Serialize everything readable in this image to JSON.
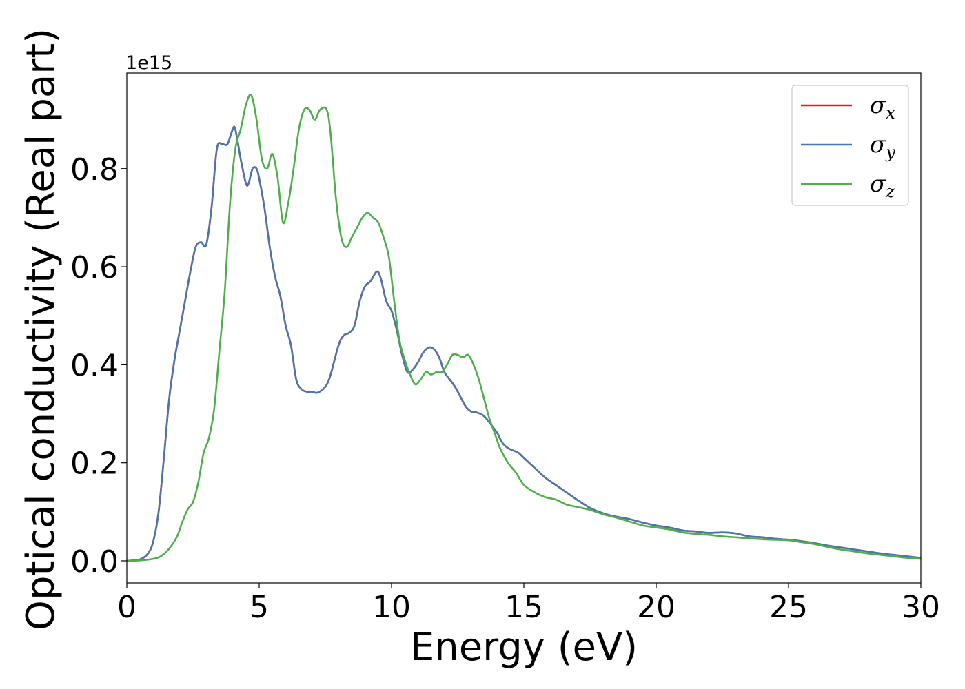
{
  "chart_data": {
    "type": "line",
    "xlabel": "Energy (eV)",
    "ylabel": "Optical conductivity (Real part)",
    "y_offset_label": "1e15",
    "xlim": [
      0,
      30
    ],
    "ylim": [
      -0.045,
      0.995
    ],
    "x_ticks": [
      0,
      5,
      10,
      15,
      20,
      25,
      30
    ],
    "x_tick_labels": [
      "0",
      "5",
      "10",
      "15",
      "20",
      "25",
      "30"
    ],
    "y_ticks": [
      0.0,
      0.2,
      0.4,
      0.6,
      0.8
    ],
    "y_tick_labels": [
      "0.0",
      "0.2",
      "0.4",
      "0.6",
      "0.8"
    ],
    "grid": false,
    "legend_position": "top-right",
    "series": [
      {
        "name": "σx",
        "symbol": "σ",
        "subscript": "x",
        "color": "#e41a1c",
        "x": [
          0,
          0.5,
          0.8,
          1.0,
          1.2,
          1.4,
          1.6,
          1.8,
          2.0,
          2.2,
          2.4,
          2.6,
          2.8,
          3.0,
          3.2,
          3.4,
          3.6,
          3.8,
          4.0,
          4.1,
          4.3,
          4.5,
          4.6,
          4.75,
          4.9,
          5.0,
          5.2,
          5.4,
          5.6,
          5.8,
          6.0,
          6.2,
          6.4,
          6.6,
          6.8,
          7.0,
          7.2,
          7.5,
          7.7,
          8.0,
          8.2,
          8.4,
          8.6,
          8.8,
          9.0,
          9.2,
          9.45,
          9.6,
          9.8,
          10.0,
          10.2,
          10.4,
          10.6,
          10.8,
          11.0,
          11.2,
          11.4,
          11.6,
          11.8,
          12.0,
          12.2,
          12.4,
          12.6,
          12.8,
          13.0,
          13.2,
          13.5,
          13.8,
          14.0,
          14.2,
          14.4,
          14.6,
          14.8,
          15.0,
          15.4,
          15.8,
          16.2,
          16.6,
          17.0,
          17.5,
          18.0,
          18.5,
          19.0,
          19.5,
          20.0,
          20.5,
          21.0,
          21.5,
          22.0,
          22.5,
          23.0,
          23.5,
          24.0,
          24.5,
          25.0,
          25.5,
          26.0,
          26.5,
          27.0,
          27.5,
          28.0,
          28.5,
          29.0,
          29.5,
          30.0
        ],
        "values": [
          0.0,
          0.003,
          0.015,
          0.04,
          0.1,
          0.21,
          0.33,
          0.41,
          0.47,
          0.53,
          0.59,
          0.64,
          0.65,
          0.645,
          0.72,
          0.84,
          0.85,
          0.85,
          0.88,
          0.88,
          0.82,
          0.77,
          0.77,
          0.8,
          0.8,
          0.78,
          0.72,
          0.64,
          0.58,
          0.54,
          0.48,
          0.44,
          0.37,
          0.35,
          0.345,
          0.345,
          0.343,
          0.355,
          0.38,
          0.44,
          0.46,
          0.465,
          0.48,
          0.53,
          0.56,
          0.57,
          0.59,
          0.575,
          0.53,
          0.51,
          0.47,
          0.42,
          0.385,
          0.39,
          0.405,
          0.425,
          0.435,
          0.432,
          0.415,
          0.385,
          0.37,
          0.355,
          0.335,
          0.315,
          0.305,
          0.303,
          0.295,
          0.275,
          0.26,
          0.24,
          0.23,
          0.225,
          0.22,
          0.21,
          0.19,
          0.17,
          0.155,
          0.14,
          0.125,
          0.108,
          0.097,
          0.09,
          0.085,
          0.078,
          0.072,
          0.068,
          0.062,
          0.06,
          0.057,
          0.058,
          0.056,
          0.05,
          0.048,
          0.045,
          0.043,
          0.04,
          0.036,
          0.031,
          0.027,
          0.023,
          0.019,
          0.015,
          0.012,
          0.009,
          0.006
        ]
      },
      {
        "name": "σy",
        "symbol": "σ",
        "subscript": "y",
        "color": "#4a76ad",
        "x": [
          0,
          0.5,
          0.8,
          1.0,
          1.2,
          1.4,
          1.6,
          1.8,
          2.0,
          2.2,
          2.4,
          2.6,
          2.8,
          3.0,
          3.2,
          3.4,
          3.6,
          3.8,
          4.0,
          4.1,
          4.3,
          4.5,
          4.6,
          4.75,
          4.9,
          5.0,
          5.2,
          5.4,
          5.6,
          5.8,
          6.0,
          6.2,
          6.4,
          6.6,
          6.8,
          7.0,
          7.2,
          7.5,
          7.7,
          8.0,
          8.2,
          8.4,
          8.6,
          8.8,
          9.0,
          9.2,
          9.45,
          9.6,
          9.8,
          10.0,
          10.2,
          10.4,
          10.6,
          10.8,
          11.0,
          11.2,
          11.4,
          11.6,
          11.8,
          12.0,
          12.2,
          12.4,
          12.6,
          12.8,
          13.0,
          13.2,
          13.5,
          13.8,
          14.0,
          14.2,
          14.4,
          14.6,
          14.8,
          15.0,
          15.4,
          15.8,
          16.2,
          16.6,
          17.0,
          17.5,
          18.0,
          18.5,
          19.0,
          19.5,
          20.0,
          20.5,
          21.0,
          21.5,
          22.0,
          22.5,
          23.0,
          23.5,
          24.0,
          24.5,
          25.0,
          25.5,
          26.0,
          26.5,
          27.0,
          27.5,
          28.0,
          28.5,
          29.0,
          29.5,
          30.0
        ],
        "values": [
          0.0,
          0.003,
          0.015,
          0.04,
          0.1,
          0.21,
          0.33,
          0.41,
          0.47,
          0.53,
          0.59,
          0.64,
          0.65,
          0.645,
          0.72,
          0.84,
          0.85,
          0.85,
          0.88,
          0.88,
          0.82,
          0.77,
          0.77,
          0.8,
          0.8,
          0.78,
          0.72,
          0.64,
          0.58,
          0.54,
          0.48,
          0.44,
          0.37,
          0.35,
          0.345,
          0.345,
          0.343,
          0.355,
          0.38,
          0.44,
          0.46,
          0.465,
          0.48,
          0.53,
          0.56,
          0.57,
          0.59,
          0.575,
          0.53,
          0.51,
          0.47,
          0.42,
          0.385,
          0.39,
          0.405,
          0.425,
          0.435,
          0.432,
          0.415,
          0.385,
          0.37,
          0.355,
          0.335,
          0.315,
          0.305,
          0.303,
          0.295,
          0.275,
          0.26,
          0.24,
          0.23,
          0.225,
          0.22,
          0.21,
          0.19,
          0.17,
          0.155,
          0.14,
          0.125,
          0.108,
          0.097,
          0.09,
          0.085,
          0.078,
          0.072,
          0.068,
          0.062,
          0.06,
          0.057,
          0.058,
          0.056,
          0.05,
          0.048,
          0.045,
          0.043,
          0.04,
          0.036,
          0.031,
          0.027,
          0.023,
          0.019,
          0.015,
          0.012,
          0.009,
          0.006
        ]
      },
      {
        "name": "σz",
        "symbol": "σ",
        "subscript": "z",
        "color": "#4daf4a",
        "x": [
          0,
          0.5,
          1.0,
          1.3,
          1.6,
          1.9,
          2.1,
          2.3,
          2.5,
          2.7,
          2.9,
          3.1,
          3.3,
          3.5,
          3.7,
          3.9,
          4.1,
          4.3,
          4.5,
          4.7,
          4.9,
          5.1,
          5.3,
          5.5,
          5.7,
          5.9,
          6.1,
          6.3,
          6.5,
          6.7,
          6.9,
          7.1,
          7.3,
          7.55,
          7.7,
          7.9,
          8.1,
          8.3,
          8.5,
          8.7,
          8.9,
          9.1,
          9.3,
          9.5,
          9.7,
          9.9,
          10.1,
          10.3,
          10.5,
          10.7,
          10.9,
          11.1,
          11.3,
          11.5,
          11.7,
          11.9,
          12.1,
          12.3,
          12.5,
          12.7,
          12.9,
          13.1,
          13.3,
          13.5,
          13.7,
          13.9,
          14.1,
          14.4,
          14.7,
          15.0,
          15.4,
          15.8,
          16.2,
          16.6,
          17.0,
          17.5,
          18.0,
          18.5,
          19.0,
          19.5,
          20.0,
          20.5,
          21.0,
          21.5,
          22.0,
          22.5,
          23.0,
          23.5,
          24.0,
          24.5,
          25.0,
          25.5,
          26.0,
          26.5,
          27.0,
          27.5,
          28.0,
          28.5,
          29.0,
          29.5,
          30.0
        ],
        "values": [
          0.0,
          0.001,
          0.004,
          0.01,
          0.025,
          0.05,
          0.08,
          0.105,
          0.12,
          0.16,
          0.22,
          0.25,
          0.31,
          0.43,
          0.55,
          0.73,
          0.84,
          0.88,
          0.93,
          0.95,
          0.9,
          0.82,
          0.8,
          0.83,
          0.78,
          0.69,
          0.73,
          0.8,
          0.88,
          0.92,
          0.92,
          0.9,
          0.92,
          0.92,
          0.87,
          0.74,
          0.66,
          0.64,
          0.66,
          0.68,
          0.7,
          0.71,
          0.7,
          0.69,
          0.66,
          0.62,
          0.53,
          0.45,
          0.41,
          0.38,
          0.36,
          0.37,
          0.385,
          0.38,
          0.385,
          0.385,
          0.4,
          0.42,
          0.42,
          0.415,
          0.42,
          0.4,
          0.37,
          0.33,
          0.29,
          0.26,
          0.23,
          0.2,
          0.18,
          0.155,
          0.14,
          0.13,
          0.125,
          0.115,
          0.11,
          0.104,
          0.095,
          0.088,
          0.08,
          0.072,
          0.068,
          0.064,
          0.058,
          0.055,
          0.053,
          0.05,
          0.048,
          0.046,
          0.044,
          0.043,
          0.042,
          0.038,
          0.034,
          0.028,
          0.023,
          0.019,
          0.015,
          0.012,
          0.009,
          0.006,
          0.004
        ]
      }
    ]
  }
}
